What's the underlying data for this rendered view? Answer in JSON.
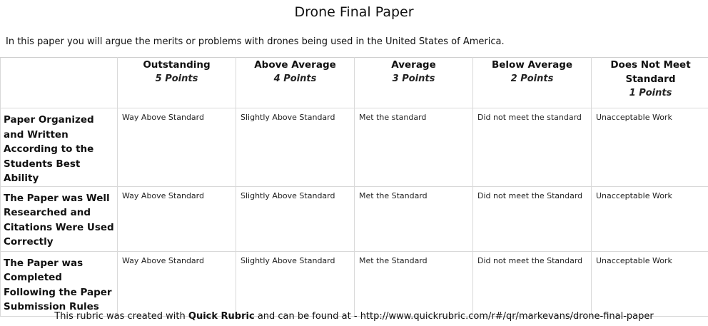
{
  "title": "Drone Final Paper",
  "intro": "In this paper you will argue the merits or problems with drones being used in the United States of America.",
  "levels": [
    {
      "name": "Outstanding",
      "points": "5 Points"
    },
    {
      "name": "Above Average",
      "points": "4 Points"
    },
    {
      "name": "Average",
      "points": "3 Points"
    },
    {
      "name": "Below Average",
      "points": "2 Points"
    },
    {
      "name": "Does Not Meet Standard",
      "points": "1 Points"
    }
  ],
  "criteria": [
    {
      "name": "Paper Organized and Written According to the Students Best Ability",
      "cells": [
        "Way Above Standard",
        "Slightly Above Standard",
        "Met the standard",
        "Did not meet the standard",
        "Unacceptable Work"
      ]
    },
    {
      "name": "The Paper was Well Researched and Citations Were Used Correctly",
      "cells": [
        "Way Above Standard",
        "Slightly Above Standard",
        "Met the Standard",
        "Did not meet the Standard",
        "Unacceptable Work"
      ]
    },
    {
      "name": "The Paper was Completed Following the Paper Submission Rules",
      "cells": [
        "Way Above Standard",
        "Slightly Above Standard",
        "Met the Standard",
        "Did not meet the Standard",
        "Unacceptable Work"
      ]
    }
  ],
  "footer": {
    "prefix": "This rubric was created with ",
    "brand": "Quick Rubric",
    "suffix": " and can be found at - http://www.quickrubric.com/r#/qr/markevans/drone-final-paper"
  }
}
